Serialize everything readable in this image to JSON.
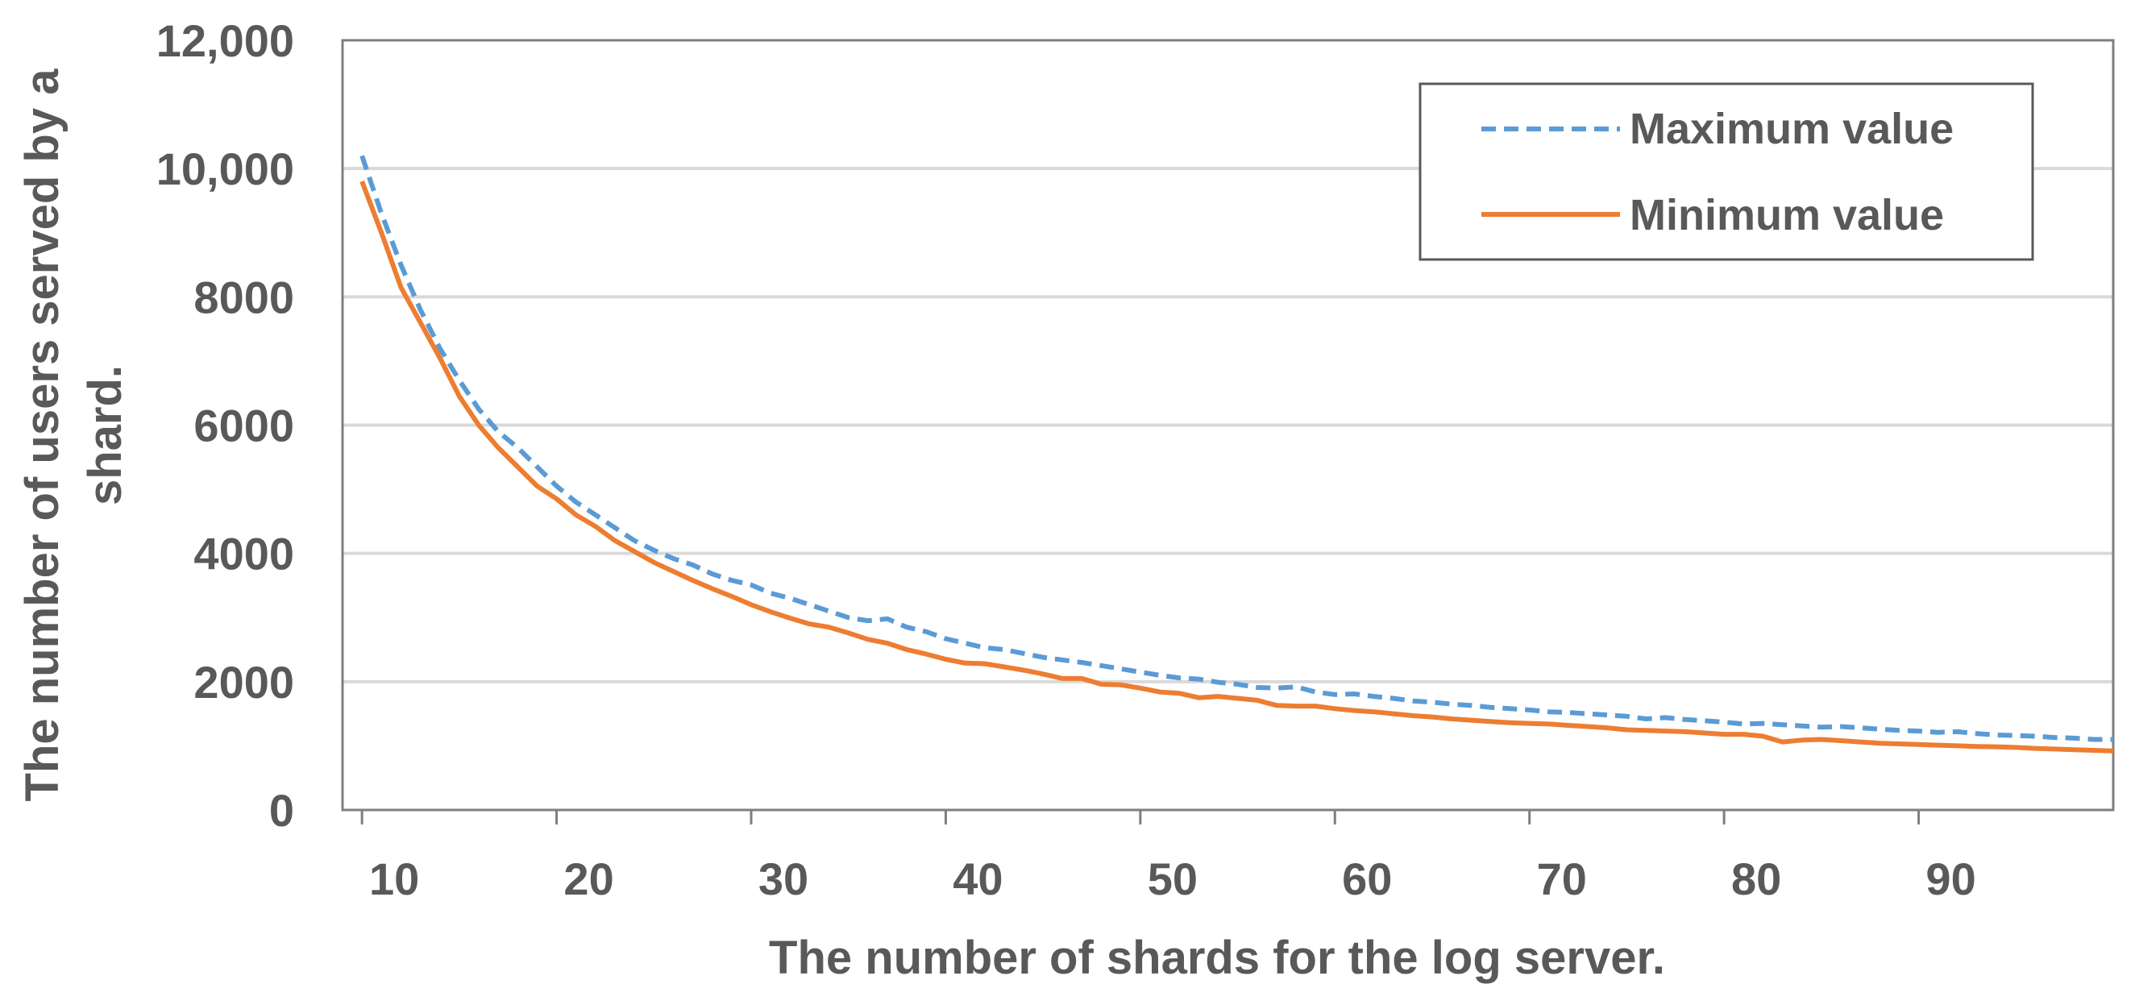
{
  "chart_data": {
    "type": "line",
    "title": "",
    "xlabel": "The number of shards for the log server.",
    "ylabel_line1": "The number of users served by a",
    "ylabel_line2": "shard.",
    "xlim": [
      9,
      100
    ],
    "ylim": [
      0,
      12000
    ],
    "x_ticks": [
      10,
      20,
      30,
      40,
      50,
      60,
      70,
      80,
      90
    ],
    "x_tick_labels": [
      "10",
      "20",
      "30",
      "40",
      "50",
      "60",
      "70",
      "80",
      "90"
    ],
    "y_ticks": [
      0,
      2000,
      4000,
      6000,
      8000,
      10000,
      12000
    ],
    "y_tick_labels": [
      "0",
      "2000",
      "4000",
      "6000",
      "8000",
      "10,000",
      "12,000"
    ],
    "grid": true,
    "legend_position": "top-right",
    "x": [
      10,
      11,
      12,
      13,
      14,
      15,
      16,
      17,
      18,
      19,
      20,
      21,
      22,
      23,
      24,
      25,
      26,
      27,
      28,
      29,
      30,
      31,
      32,
      33,
      34,
      35,
      36,
      37,
      38,
      39,
      40,
      41,
      42,
      43,
      44,
      45,
      46,
      47,
      48,
      49,
      50,
      51,
      52,
      53,
      54,
      55,
      56,
      57,
      58,
      59,
      60,
      61,
      62,
      63,
      64,
      65,
      66,
      67,
      68,
      69,
      70,
      71,
      72,
      73,
      74,
      75,
      76,
      77,
      78,
      79,
      80,
      81,
      82,
      83,
      84,
      85,
      86,
      87,
      88,
      89,
      90,
      91,
      92,
      93,
      94,
      95,
      96,
      97,
      98,
      99,
      100
    ],
    "series": [
      {
        "name": "Maximum value",
        "color": "#5b9bd5",
        "dash": "dashed",
        "values": [
          10200,
          9300,
          8500,
          7800,
          7200,
          6700,
          6250,
          5900,
          5650,
          5350,
          5050,
          4800,
          4600,
          4400,
          4200,
          4050,
          3920,
          3820,
          3680,
          3580,
          3510,
          3380,
          3300,
          3200,
          3100,
          3000,
          2950,
          2980,
          2850,
          2780,
          2670,
          2600,
          2530,
          2500,
          2440,
          2380,
          2340,
          2300,
          2250,
          2200,
          2150,
          2100,
          2060,
          2040,
          1990,
          1960,
          1910,
          1900,
          1920,
          1840,
          1800,
          1810,
          1770,
          1740,
          1700,
          1680,
          1650,
          1630,
          1600,
          1580,
          1560,
          1530,
          1520,
          1500,
          1480,
          1460,
          1420,
          1440,
          1410,
          1390,
          1370,
          1340,
          1350,
          1330,
          1310,
          1290,
          1300,
          1280,
          1260,
          1240,
          1230,
          1210,
          1220,
          1190,
          1170,
          1160,
          1150,
          1130,
          1120,
          1100,
          1100
        ]
      },
      {
        "name": "Minimum value",
        "color": "#ed7d31",
        "dash": "solid",
        "values": [
          9800,
          9000,
          8150,
          7600,
          7050,
          6450,
          6000,
          5650,
          5350,
          5050,
          4850,
          4600,
          4420,
          4200,
          4030,
          3860,
          3720,
          3580,
          3450,
          3330,
          3200,
          3090,
          2990,
          2900,
          2850,
          2760,
          2660,
          2600,
          2500,
          2430,
          2350,
          2290,
          2280,
          2230,
          2180,
          2120,
          2050,
          2050,
          1960,
          1950,
          1900,
          1840,
          1820,
          1750,
          1770,
          1740,
          1710,
          1630,
          1620,
          1620,
          1580,
          1550,
          1530,
          1500,
          1470,
          1450,
          1420,
          1400,
          1380,
          1360,
          1350,
          1340,
          1320,
          1300,
          1280,
          1250,
          1240,
          1230,
          1220,
          1200,
          1180,
          1180,
          1150,
          1060,
          1090,
          1100,
          1080,
          1060,
          1040,
          1030,
          1020,
          1010,
          1000,
          990,
          985,
          975,
          960,
          950,
          940,
          930,
          920
        ]
      }
    ]
  }
}
